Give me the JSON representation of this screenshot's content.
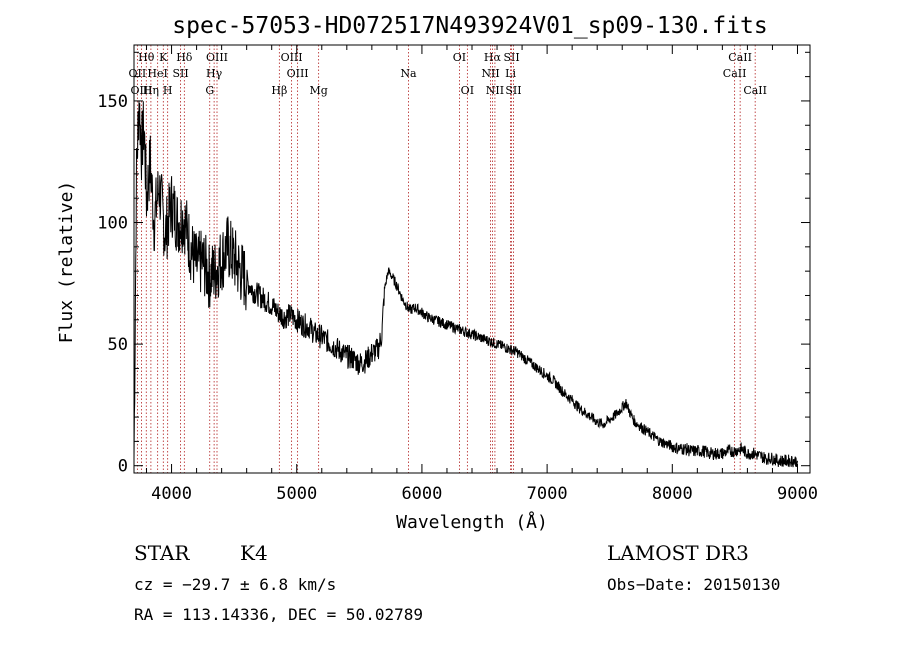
{
  "chart_data": {
    "type": "line",
    "title": "spec-57053-HD072517N493924V01_sp09-130.fits",
    "xlabel": "Wavelength (Å)",
    "ylabel": "Flux (relative)",
    "xlim": [
      3700,
      9100
    ],
    "ylim": [
      -3,
      173
    ],
    "xticks": [
      4000,
      5000,
      6000,
      7000,
      8000,
      9000
    ],
    "yticks": [
      0,
      50,
      100,
      150
    ],
    "series": [
      {
        "name": "spectrum",
        "x": [
          3700,
          3720,
          3740,
          3760,
          3780,
          3800,
          3830,
          3860,
          3900,
          3950,
          4000,
          4050,
          4100,
          4150,
          4200,
          4250,
          4300,
          4350,
          4400,
          4450,
          4500,
          4550,
          4600,
          4650,
          4700,
          4750,
          4800,
          4850,
          4900,
          4950,
          5000,
          5050,
          5100,
          5150,
          5200,
          5250,
          5300,
          5350,
          5400,
          5450,
          5500,
          5550,
          5600,
          5650,
          5680,
          5700,
          5730,
          5760,
          5800,
          5850,
          5900,
          5950,
          6000,
          6050,
          6100,
          6150,
          6200,
          6250,
          6300,
          6350,
          6400,
          6450,
          6500,
          6550,
          6600,
          6650,
          6700,
          6750,
          6800,
          6850,
          6900,
          6950,
          7000,
          7050,
          7100,
          7150,
          7200,
          7250,
          7300,
          7350,
          7400,
          7450,
          7500,
          7550,
          7600,
          7630,
          7660,
          7700,
          7750,
          7800,
          7850,
          7900,
          7950,
          8000,
          8050,
          8100,
          8150,
          8200,
          8250,
          8300,
          8350,
          8400,
          8450,
          8500,
          8550,
          8600,
          8650,
          8700,
          8750,
          8800,
          8850,
          8900,
          8950,
          9000
        ],
        "y": [
          3,
          120,
          150,
          130,
          140,
          110,
          125,
          100,
          115,
          95,
          108,
          100,
          102,
          90,
          82,
          84,
          78,
          80,
          85,
          90,
          85,
          80,
          76,
          72,
          70,
          68,
          66,
          63,
          61,
          62,
          60,
          58,
          57,
          54,
          53,
          51,
          49,
          47,
          45,
          44,
          42,
          43,
          46,
          48,
          54,
          72,
          80,
          78,
          74,
          68,
          64,
          65,
          63,
          61,
          60,
          59,
          58,
          57,
          56,
          55,
          54,
          53,
          52,
          51,
          50,
          49,
          48,
          47,
          45,
          43,
          41,
          39,
          37,
          35,
          32,
          29,
          27,
          24,
          22,
          20,
          18,
          17,
          19,
          21,
          24,
          26,
          22,
          18,
          16,
          14,
          12,
          10,
          9,
          8,
          7,
          7,
          6,
          6,
          6,
          5,
          5,
          5,
          6,
          6,
          7,
          5,
          5,
          4,
          3,
          3,
          2,
          2,
          2,
          2
        ]
      }
    ],
    "lines": [
      {
        "label": "Hθ",
        "w": 3798,
        "row": 1
      },
      {
        "label": "OII",
        "w": 3727,
        "row": 2
      },
      {
        "label": "OIII",
        "w": 3760,
        "row": 3
      },
      {
        "label": "K",
        "w": 3934,
        "row": 1
      },
      {
        "label": "H",
        "w": 3969,
        "row": 3
      },
      {
        "label": "HeI",
        "w": 3889,
        "row": 2
      },
      {
        "label": "Hη",
        "w": 3835,
        "row": 3
      },
      {
        "label": "SII",
        "w": 4072,
        "row": 2
      },
      {
        "label": "Hδ",
        "w": 4102,
        "row": 1
      },
      {
        "label": "OIII",
        "w": 4363,
        "row": 1
      },
      {
        "label": "Hγ",
        "w": 4340,
        "row": 2
      },
      {
        "label": "G",
        "w": 4305,
        "row": 3
      },
      {
        "label": "OIII",
        "w": 4959,
        "row": 1
      },
      {
        "label": "OIII",
        "w": 5007,
        "row": 2
      },
      {
        "label": "Hβ",
        "w": 4861,
        "row": 3
      },
      {
        "label": "Mg",
        "w": 5175,
        "row": 3
      },
      {
        "label": "Na",
        "w": 5893,
        "row": 2
      },
      {
        "label": "OI",
        "w": 6300,
        "row": 1
      },
      {
        "label": "OI",
        "w": 6363,
        "row": 3
      },
      {
        "label": "Hα",
        "w": 6563,
        "row": 1
      },
      {
        "label": "NII",
        "w": 6548,
        "row": 2
      },
      {
        "label": "NII",
        "w": 6583,
        "row": 3
      },
      {
        "label": "SII",
        "w": 6716,
        "row": 1
      },
      {
        "label": "Li",
        "w": 6708,
        "row": 2
      },
      {
        "label": "SII",
        "w": 6731,
        "row": 3
      },
      {
        "label": "CaII",
        "w": 8542,
        "row": 1
      },
      {
        "label": "CaII",
        "w": 8498,
        "row": 2
      },
      {
        "label": "CaII",
        "w": 8662,
        "row": 3
      }
    ]
  },
  "info": {
    "object_class": "STAR",
    "subclass": "K4",
    "survey": "LAMOST DR3",
    "redshift": "cz = −29.7 ± 6.8 km/s",
    "obs_date": "Obs−Date: 20150130",
    "coords": "RA = 113.14336, DEC =  50.02789"
  },
  "colors": {
    "axis": "#000000",
    "line": "#000000",
    "marker": "#b22222"
  }
}
